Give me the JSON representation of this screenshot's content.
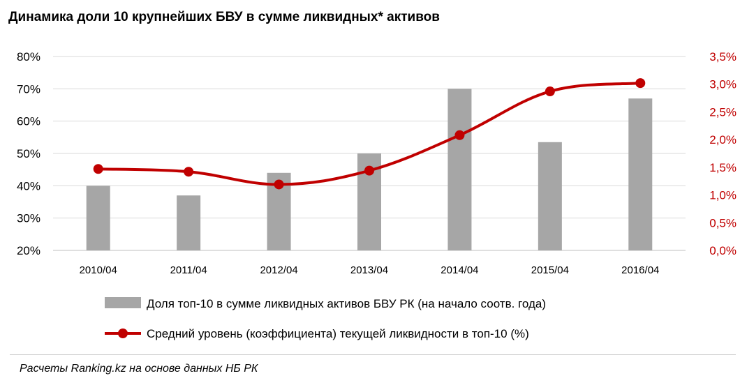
{
  "title": "Динамика  доли 10 крупнейших  БВУ в сумме  ликвидных*  активов",
  "chart_data": {
    "type": "bar",
    "categories": [
      "2010/04",
      "2011/04",
      "2012/04",
      "2013/04",
      "2014/04",
      "2015/04",
      "2016/04"
    ],
    "series": [
      {
        "name": "Доля топ-10 в сумме ликвидных  активов БВУ РК (на начало соотв. года)",
        "chart": "bar",
        "axis": "left",
        "color": "#a6a6a6",
        "values": [
          40,
          37,
          44,
          50,
          70,
          53.5,
          67
        ]
      },
      {
        "name": "Средний уровень (коэффициента) текущей ликвидности в топ-10 (%)",
        "chart": "line",
        "axis": "right",
        "color": "#c00000",
        "values": [
          1.47,
          1.42,
          1.19,
          1.44,
          2.08,
          2.87,
          3.02
        ]
      }
    ],
    "ylim_left": [
      20,
      80
    ],
    "ylim_right": [
      0,
      3.5
    ],
    "yticks_left": [
      "20%",
      "30%",
      "40%",
      "50%",
      "60%",
      "70%",
      "80%"
    ],
    "yticks_right": [
      "0,0%",
      "0,5%",
      "1,0%",
      "1,5%",
      "2,0%",
      "2,5%",
      "3,0%",
      "3,5%"
    ],
    "grid": true,
    "legend_position": "bottom"
  },
  "source": "Расчеты Ranking.kz на основе данных  НБ РК"
}
